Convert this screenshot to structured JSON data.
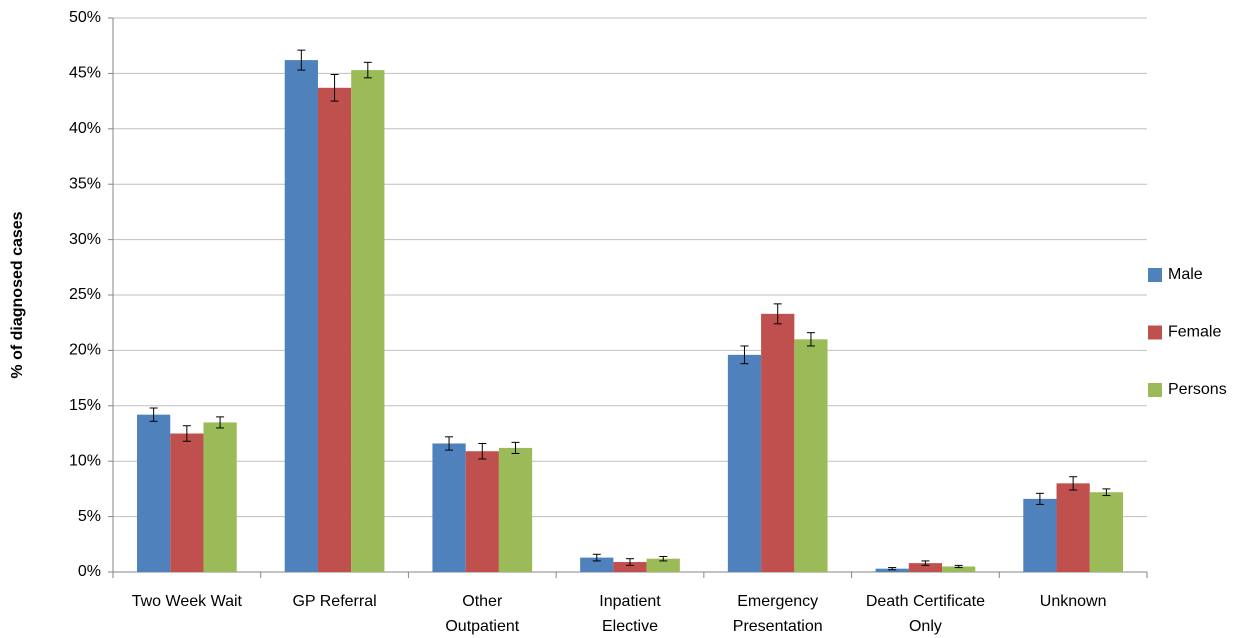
{
  "chart_data": {
    "type": "bar",
    "y_label": "% of diagnosed cases",
    "categories": [
      "Two Week Wait",
      "GP Referral",
      "Other\nOutpatient",
      "Inpatient\nElective",
      "Emergency\nPresentation",
      "Death Certificate\nOnly",
      "Unknown"
    ],
    "series": [
      {
        "name": "Male",
        "color": "#4f81bd",
        "values": [
          14.2,
          46.2,
          11.6,
          1.3,
          19.6,
          0.3,
          6.6
        ],
        "errors": [
          0.6,
          0.9,
          0.6,
          0.3,
          0.8,
          0.1,
          0.5
        ]
      },
      {
        "name": "Female",
        "color": "#c0504d",
        "values": [
          12.5,
          43.7,
          10.9,
          0.9,
          23.3,
          0.8,
          8.0
        ],
        "errors": [
          0.7,
          1.2,
          0.7,
          0.3,
          0.9,
          0.2,
          0.6
        ]
      },
      {
        "name": "Persons",
        "color": "#9bbb59",
        "values": [
          13.5,
          45.3,
          11.2,
          1.2,
          21.0,
          0.5,
          7.2
        ],
        "errors": [
          0.5,
          0.7,
          0.5,
          0.2,
          0.6,
          0.1,
          0.3
        ]
      }
    ],
    "ylim": [
      0,
      50
    ],
    "yticks": [
      {
        "value": 0,
        "label": "0%"
      },
      {
        "value": 5,
        "label": "5%"
      },
      {
        "value": 10,
        "label": "10%"
      },
      {
        "value": 15,
        "label": "15%"
      },
      {
        "value": 20,
        "label": "20%"
      },
      {
        "value": 25,
        "label": "25%"
      },
      {
        "value": 30,
        "label": "30%"
      },
      {
        "value": 35,
        "label": "35%"
      },
      {
        "value": 40,
        "label": "40%"
      },
      {
        "value": 45,
        "label": "45%"
      },
      {
        "value": 50,
        "label": "50%"
      }
    ],
    "grid": true,
    "legend": "right"
  }
}
